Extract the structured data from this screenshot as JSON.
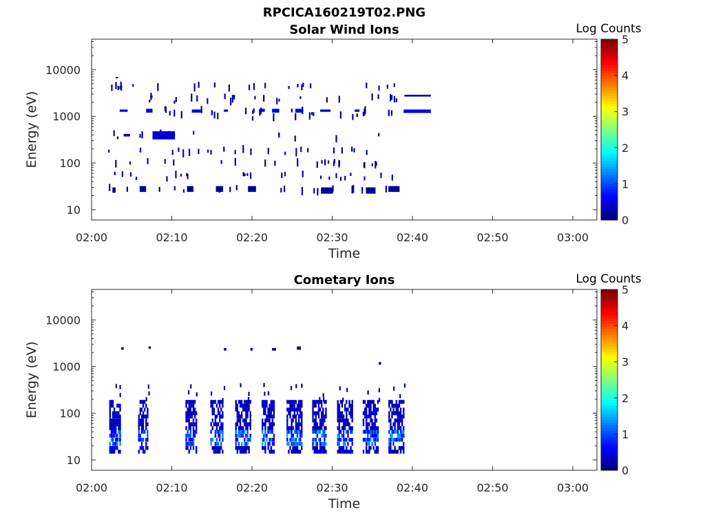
{
  "figure_title": "RPCICA160219T02.PNG",
  "chart_data": [
    {
      "type": "heatmap",
      "title": "Solar Wind Ions",
      "xlabel": "Time",
      "ylabel": "Energy (eV)",
      "y_scale": "log",
      "ylim": [
        6,
        45000
      ],
      "xlim": [
        "02:00",
        "03:03"
      ],
      "x_ticks": [
        "02:00",
        "02:10",
        "02:20",
        "02:30",
        "02:40",
        "02:50",
        "03:00"
      ],
      "y_ticks": [
        "10",
        "100",
        "1000",
        "10000"
      ],
      "colorbar_label": "Log Counts",
      "colorbar_ticks": [
        "0",
        "1",
        "2",
        "3",
        "4",
        "5"
      ],
      "colorbar_range": [
        0,
        5
      ],
      "colormap": "jet",
      "cells": [
        {
          "t": 2.6,
          "t2": 3.0,
          "e": 23,
          "e2": 30,
          "v": 0.1
        },
        {
          "t": 2.8,
          "t2": 3.0,
          "e": 55,
          "e2": 65,
          "v": 0.1
        },
        {
          "t": 3.0,
          "t2": 3.3,
          "e": 6500,
          "e2": 7000,
          "v": 0.2
        },
        {
          "t": 3.5,
          "t2": 4.5,
          "e": 1250,
          "e2": 1400,
          "v": 0.6
        },
        {
          "t": 4.0,
          "t2": 4.8,
          "e": 370,
          "e2": 420,
          "v": 0.3
        },
        {
          "t": 6.0,
          "t2": 6.8,
          "e": 24,
          "e2": 32,
          "v": 0.1
        },
        {
          "t": 6.8,
          "t2": 7.6,
          "e": 1200,
          "e2": 1450,
          "v": 0.4
        },
        {
          "t": 7.3,
          "t2": 7.6,
          "e": 2500,
          "e2": 2800,
          "v": 0.2
        },
        {
          "t": 7.6,
          "t2": 10.4,
          "e": 320,
          "e2": 480,
          "v": 0.4
        },
        {
          "t": 11.9,
          "t2": 12.7,
          "e": 24,
          "e2": 32,
          "v": 0.1
        },
        {
          "t": 12.5,
          "t2": 13.6,
          "e": 1200,
          "e2": 1400,
          "v": 0.5
        },
        {
          "t": 15.5,
          "t2": 16.4,
          "e": 24,
          "e2": 32,
          "v": 0.1
        },
        {
          "t": 16.5,
          "t2": 17.0,
          "e": 1250,
          "e2": 1400,
          "v": 0.4
        },
        {
          "t": 19.5,
          "t2": 20.5,
          "e": 24,
          "e2": 32,
          "v": 0.1
        },
        {
          "t": 21.0,
          "t2": 21.6,
          "e": 1250,
          "e2": 1450,
          "v": 0.4
        },
        {
          "t": 22.5,
          "t2": 23.4,
          "e": 1200,
          "e2": 1450,
          "v": 0.5
        },
        {
          "t": 25.4,
          "t2": 26.4,
          "e": 1200,
          "e2": 1450,
          "v": 0.5
        },
        {
          "t": 28.6,
          "t2": 30.1,
          "e": 22,
          "e2": 30,
          "v": 0.1
        },
        {
          "t": 28.5,
          "t2": 29.8,
          "e": 1250,
          "e2": 1400,
          "v": 0.4
        },
        {
          "t": 32.8,
          "t2": 33.4,
          "e": 1250,
          "e2": 1400,
          "v": 0.4
        },
        {
          "t": 34.2,
          "t2": 35.4,
          "e": 22,
          "e2": 30,
          "v": 0.1
        },
        {
          "t": 37.0,
          "t2": 38.4,
          "e": 24,
          "e2": 32,
          "v": 0.1
        },
        {
          "t": 38.9,
          "t2": 42.3,
          "e": 1180,
          "e2": 1400,
          "v": 0.6
        },
        {
          "t": 39.0,
          "t2": 42.3,
          "e": 2650,
          "e2": 2900,
          "v": 0.2
        }
      ]
    },
    {
      "type": "heatmap",
      "title": "Cometary Ions",
      "xlabel": "Time",
      "ylabel": "Energy (eV)",
      "y_scale": "log",
      "ylim": [
        6,
        45000
      ],
      "xlim": [
        "02:00",
        "03:03"
      ],
      "x_ticks": [
        "02:00",
        "02:10",
        "02:20",
        "02:30",
        "02:40",
        "02:50",
        "03:00"
      ],
      "y_ticks": [
        "10",
        "100",
        "1000",
        "10000"
      ],
      "colorbar_label": "Log Counts",
      "colorbar_ticks": [
        "0",
        "1",
        "2",
        "3",
        "4",
        "5"
      ],
      "colorbar_range": [
        0,
        5
      ],
      "colormap": "jet",
      "bursts": [
        {
          "t": 2.2,
          "t2": 3.6,
          "v_peak": 1.2
        },
        {
          "t": 5.8,
          "t2": 7.1,
          "v_peak": 1.0
        },
        {
          "t": 11.7,
          "t2": 13.2,
          "v_peak": 0.9
        },
        {
          "t": 14.8,
          "t2": 16.5,
          "v_peak": 1.1
        },
        {
          "t": 17.9,
          "t2": 19.8,
          "v_peak": 1.2
        },
        {
          "t": 21.2,
          "t2": 22.9,
          "v_peak": 1.2
        },
        {
          "t": 24.3,
          "t2": 26.2,
          "v_peak": 1.3
        },
        {
          "t": 27.5,
          "t2": 29.3,
          "v_peak": 1.3
        },
        {
          "t": 30.6,
          "t2": 32.5,
          "v_peak": 1.1
        },
        {
          "t": 33.8,
          "t2": 35.8,
          "v_peak": 1.2
        },
        {
          "t": 37.0,
          "t2": 39.0,
          "v_peak": 1.2
        }
      ],
      "cells": [
        {
          "t": 3.7,
          "t2": 4.0,
          "e": 2300,
          "e2": 2600,
          "v": 0.1
        },
        {
          "t": 7.1,
          "t2": 7.4,
          "e": 2400,
          "e2": 2700,
          "v": 0.1
        },
        {
          "t": 16.5,
          "t2": 16.8,
          "e": 2200,
          "e2": 2500,
          "v": 0.1
        },
        {
          "t": 19.8,
          "t2": 20.1,
          "e": 2200,
          "e2": 2500,
          "v": 0.1
        },
        {
          "t": 22.5,
          "t2": 23.0,
          "e": 2200,
          "e2": 2500,
          "v": 0.1
        },
        {
          "t": 25.6,
          "t2": 26.1,
          "e": 2300,
          "e2": 2700,
          "v": 0.1
        },
        {
          "t": 35.8,
          "t2": 36.1,
          "e": 1100,
          "e2": 1250,
          "v": 0.1
        }
      ]
    }
  ]
}
